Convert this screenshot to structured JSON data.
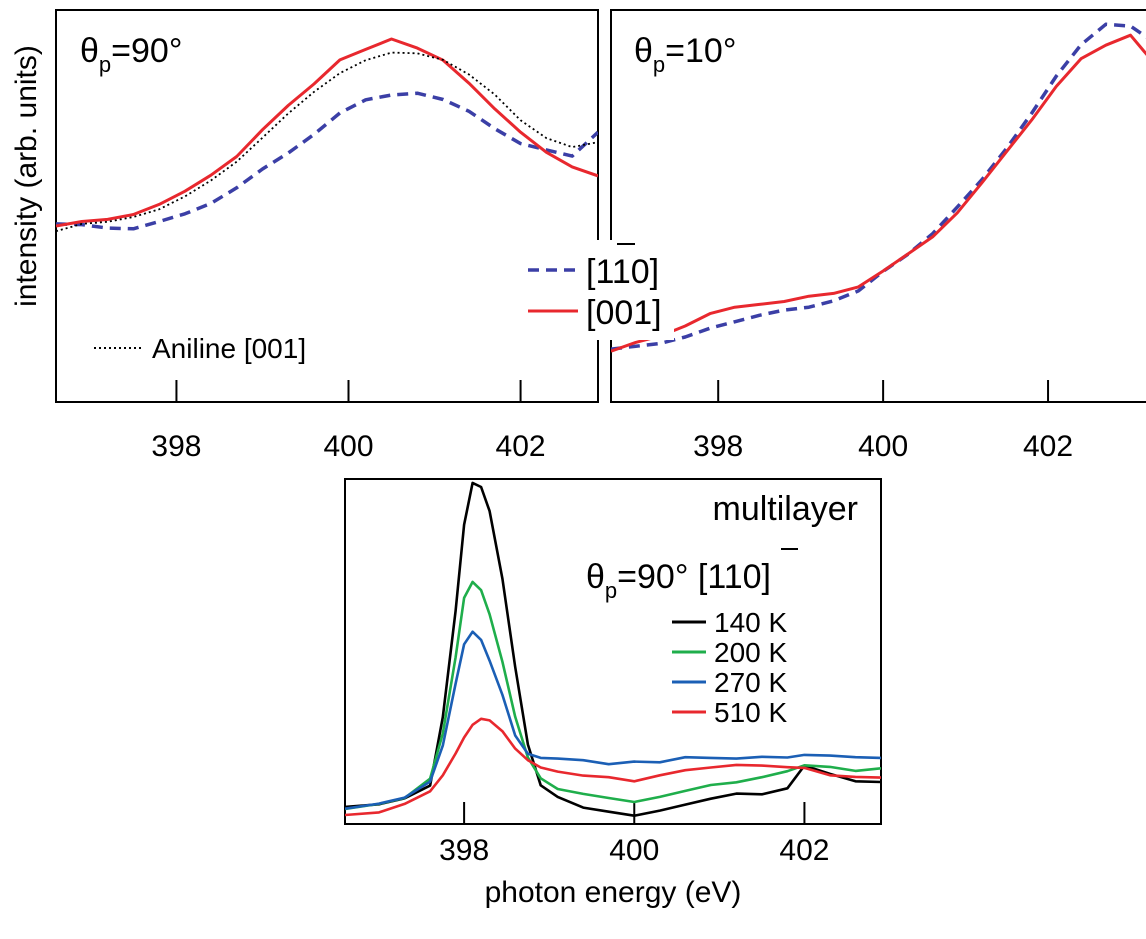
{
  "figure": {
    "ylabel": "intensity (arb. units)",
    "xlabel": "photon energy (eV)"
  },
  "chart_data": [
    {
      "panel": "top-left",
      "type": "line",
      "annotation_theta": "θ",
      "annotation_sub": "p",
      "annotation_value": "=90°",
      "xlim": [
        396.6,
        402.9
      ],
      "xticks": [
        398,
        400,
        402
      ],
      "ylim": [
        0,
        100
      ],
      "series": [
        {
          "name": "[110]",
          "color": "#3b3fa6",
          "style": "dashed",
          "x": [
            396.6,
            396.9,
            397.2,
            397.5,
            397.8,
            398.1,
            398.4,
            398.7,
            399.0,
            399.3,
            399.6,
            399.9,
            400.2,
            400.5,
            400.8,
            401.1,
            401.4,
            401.7,
            402.0,
            402.3,
            402.6,
            402.9
          ],
          "y": [
            27,
            27,
            26,
            26,
            28,
            31,
            35,
            40,
            47,
            53,
            60,
            67,
            72,
            74,
            74,
            72,
            68,
            62,
            56,
            54,
            52,
            60
          ]
        },
        {
          "name": "[001]",
          "color": "#e8282e",
          "style": "solid",
          "x": [
            396.6,
            396.9,
            397.2,
            397.5,
            397.8,
            398.1,
            398.4,
            398.7,
            399.0,
            399.3,
            399.6,
            399.9,
            400.2,
            400.5,
            400.8,
            401.1,
            401.4,
            401.7,
            402.0,
            402.3,
            402.6,
            402.9
          ],
          "y": [
            27,
            28,
            29,
            31,
            34,
            39,
            45,
            52,
            61,
            70,
            78,
            86,
            90,
            94,
            91,
            86,
            78,
            69,
            60,
            53,
            48,
            45
          ]
        },
        {
          "name": "Aniline [001]",
          "color": "#000000",
          "style": "dotted",
          "x": [
            396.6,
            396.9,
            397.2,
            397.5,
            397.8,
            398.1,
            398.4,
            398.7,
            399.0,
            399.3,
            399.6,
            399.9,
            400.2,
            400.5,
            400.8,
            401.1,
            401.4,
            401.7,
            402.0,
            402.3,
            402.6,
            402.9
          ],
          "y": [
            25,
            27,
            28,
            30,
            33,
            37,
            43,
            50,
            58,
            67,
            75,
            82,
            86,
            89,
            89,
            86,
            81,
            74,
            65,
            58,
            55,
            57
          ]
        }
      ],
      "legend_text": "Aniline [001]"
    },
    {
      "panel": "top-right",
      "type": "line",
      "annotation_theta": "θ",
      "annotation_sub": "p",
      "annotation_value": "=10°",
      "xlim": [
        396.7,
        403.2
      ],
      "xticks": [
        398,
        400,
        402
      ],
      "ylim": [
        0,
        100
      ],
      "series": [
        {
          "name": "[110]",
          "color": "#3b3fa6",
          "style": "dashed",
          "x": [
            396.7,
            397.0,
            397.3,
            397.6,
            397.9,
            398.2,
            398.5,
            398.8,
            399.1,
            399.4,
            399.7,
            400.0,
            400.3,
            400.6,
            400.9,
            401.2,
            401.5,
            401.8,
            402.1,
            402.4,
            402.7,
            403.0,
            403.2
          ],
          "y": [
            7,
            8,
            9,
            11,
            13,
            15,
            17,
            18,
            19,
            21,
            24,
            29,
            34,
            40,
            47,
            55,
            64,
            74,
            84,
            93,
            99,
            98,
            95
          ]
        },
        {
          "name": "[001]",
          "color": "#e8282e",
          "style": "solid",
          "x": [
            396.7,
            397.0,
            397.3,
            397.6,
            397.9,
            398.2,
            398.5,
            398.8,
            399.1,
            399.4,
            399.7,
            400.0,
            400.3,
            400.6,
            400.9,
            401.2,
            401.5,
            401.8,
            402.1,
            402.4,
            402.7,
            403.0,
            403.2
          ],
          "y": [
            7,
            9,
            11,
            14,
            17,
            19,
            20,
            21,
            22,
            23,
            25,
            29,
            34,
            39,
            46,
            54,
            63,
            72,
            81,
            89,
            93,
            96,
            90
          ]
        }
      ],
      "legend": [
        {
          "label": "[110]",
          "overbar": "1"
        },
        {
          "label": "[001]"
        }
      ]
    },
    {
      "panel": "bottom",
      "type": "line",
      "title": "multilayer",
      "annotation_theta": "θ",
      "annotation_sub": "p",
      "annotation_value": "=90° [110]",
      "xlim": [
        396.6,
        402.9
      ],
      "xticks": [
        398,
        400,
        402
      ],
      "ylim": [
        0,
        100
      ],
      "series": [
        {
          "name": "140 K",
          "color": "#000000",
          "x": [
            396.6,
            397.0,
            397.3,
            397.6,
            397.75,
            397.9,
            398.0,
            398.1,
            398.2,
            398.3,
            398.45,
            398.6,
            398.75,
            398.9,
            399.1,
            399.4,
            399.7,
            400.0,
            400.3,
            400.6,
            400.9,
            401.2,
            401.5,
            401.8,
            402.0,
            402.3,
            402.6,
            402.9
          ],
          "y": [
            3,
            4,
            6,
            10,
            30,
            62,
            88,
            100,
            99,
            92,
            72,
            45,
            22,
            10,
            6,
            3,
            2,
            1,
            2,
            4,
            6,
            7,
            7,
            9,
            16,
            13,
            11,
            11
          ]
        },
        {
          "name": "200 K",
          "color": "#1fae4b",
          "x": [
            396.6,
            397.0,
            397.3,
            397.6,
            397.75,
            397.9,
            398.0,
            398.1,
            398.2,
            398.3,
            398.45,
            398.6,
            398.75,
            398.9,
            399.1,
            399.4,
            399.7,
            400.0,
            400.3,
            400.6,
            400.9,
            401.2,
            401.5,
            401.8,
            402.0,
            402.3,
            402.6,
            402.9
          ],
          "y": [
            3,
            4,
            6,
            12,
            25,
            48,
            66,
            71,
            68,
            61,
            47,
            30,
            18,
            12,
            9,
            7,
            6,
            5,
            6,
            8,
            10,
            11,
            12,
            14,
            16,
            15,
            14,
            15
          ]
        },
        {
          "name": "270 K",
          "color": "#1b5fb5",
          "x": [
            396.6,
            397.0,
            397.3,
            397.6,
            397.75,
            397.9,
            398.0,
            398.1,
            398.2,
            398.3,
            398.45,
            398.6,
            398.75,
            398.9,
            399.1,
            399.4,
            399.7,
            400.0,
            400.3,
            400.6,
            400.9,
            401.2,
            401.5,
            401.8,
            402.0,
            402.3,
            402.6,
            402.9
          ],
          "y": [
            3,
            4,
            6,
            11,
            22,
            40,
            52,
            56,
            53,
            47,
            37,
            25,
            19,
            18,
            18,
            17,
            16,
            17,
            17,
            18,
            18,
            18,
            18,
            18,
            19,
            19,
            18,
            18
          ]
        },
        {
          "name": "510 K",
          "color": "#e8282e",
          "x": [
            396.6,
            397.0,
            397.3,
            397.6,
            397.75,
            397.9,
            398.0,
            398.1,
            398.2,
            398.3,
            398.45,
            398.6,
            398.75,
            398.9,
            399.1,
            399.4,
            399.7,
            400.0,
            400.3,
            400.6,
            400.9,
            401.2,
            401.5,
            401.8,
            402.0,
            402.3,
            402.6,
            402.9
          ],
          "y": [
            1,
            2,
            4,
            8,
            13,
            19,
            24,
            28,
            30,
            29,
            26,
            21,
            17,
            15,
            14,
            13,
            12,
            11,
            13,
            14,
            15,
            16,
            16,
            15,
            15,
            13,
            12,
            12
          ]
        }
      ]
    }
  ]
}
